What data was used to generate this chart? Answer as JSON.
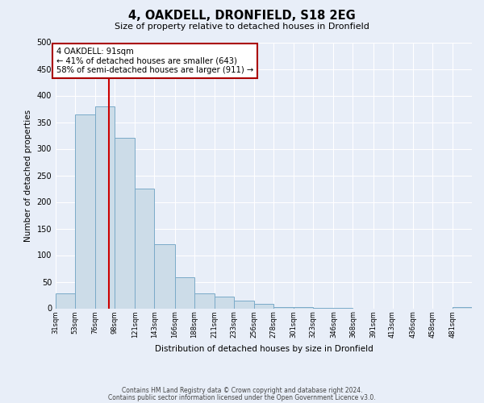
{
  "title": "4, OAKDELL, DRONFIELD, S18 2EG",
  "subtitle": "Size of property relative to detached houses in Dronfield",
  "xlabel": "Distribution of detached houses by size in Dronfield",
  "ylabel": "Number of detached properties",
  "bar_color": "#ccdce8",
  "bar_edge_color": "#7aaac8",
  "background_color": "#e8eef8",
  "bin_labels": [
    "31sqm",
    "53sqm",
    "76sqm",
    "98sqm",
    "121sqm",
    "143sqm",
    "166sqm",
    "188sqm",
    "211sqm",
    "233sqm",
    "256sqm",
    "278sqm",
    "301sqm",
    "323sqm",
    "346sqm",
    "368sqm",
    "391sqm",
    "413sqm",
    "436sqm",
    "458sqm",
    "481sqm"
  ],
  "bar_heights": [
    28,
    365,
    380,
    320,
    225,
    120,
    58,
    28,
    22,
    15,
    8,
    3,
    2,
    1,
    1,
    0,
    0,
    0,
    0,
    0,
    2
  ],
  "bin_edges": [
    31,
    53,
    76,
    98,
    121,
    143,
    166,
    188,
    211,
    233,
    256,
    278,
    301,
    323,
    346,
    368,
    391,
    413,
    436,
    458,
    481,
    503
  ],
  "vline_x": 91,
  "vline_color": "#cc0000",
  "annotation_line1": "4 OAKDELL: 91sqm",
  "annotation_line2": "← 41% of detached houses are smaller (643)",
  "annotation_line3": "58% of semi-detached houses are larger (911) →",
  "annotation_box_color": "#ffffff",
  "annotation_box_edge_color": "#aa0000",
  "ylim": [
    0,
    500
  ],
  "yticks": [
    0,
    50,
    100,
    150,
    200,
    250,
    300,
    350,
    400,
    450,
    500
  ],
  "footer_line1": "Contains HM Land Registry data © Crown copyright and database right 2024.",
  "footer_line2": "Contains public sector information licensed under the Open Government Licence v3.0."
}
